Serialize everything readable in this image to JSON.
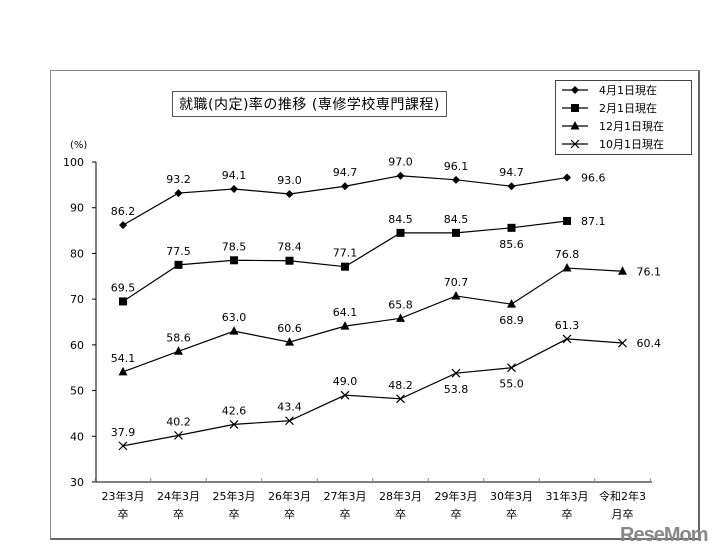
{
  "chart_data": {
    "type": "line",
    "title": "就職(内定)率の推移 (専修学校専門課程)",
    "ylabel": "(%)",
    "xlabel": "",
    "ylim": [
      30,
      100
    ],
    "yticks": [
      30,
      40,
      50,
      60,
      70,
      80,
      90,
      100
    ],
    "grid": false,
    "legend_position": "top-right",
    "categories": [
      [
        "23年3月",
        "卒"
      ],
      [
        "24年3月",
        "卒"
      ],
      [
        "25年3月",
        "卒"
      ],
      [
        "26年3月",
        "卒"
      ],
      [
        "27年3月",
        "卒"
      ],
      [
        "28年3月",
        "卒"
      ],
      [
        "29年3月",
        "卒"
      ],
      [
        "30年3月",
        "卒"
      ],
      [
        "31年3月",
        "卒"
      ],
      [
        "令和2年3",
        "月卒"
      ]
    ],
    "series": [
      {
        "name": "4月1日現在",
        "marker": "diamond",
        "values": [
          86.2,
          93.2,
          94.1,
          93.0,
          94.7,
          97.0,
          96.1,
          94.7,
          96.6,
          null
        ],
        "label_pos": [
          "above",
          "above",
          "above",
          "above",
          "above",
          "above",
          "above",
          "above",
          "right",
          null
        ]
      },
      {
        "name": "2月1日現在",
        "marker": "square",
        "values": [
          69.5,
          77.5,
          78.5,
          78.4,
          77.1,
          84.5,
          84.5,
          85.6,
          87.1,
          null
        ],
        "label_pos": [
          "above",
          "above",
          "above",
          "above",
          "above",
          "above",
          "above",
          "below",
          "right",
          null
        ]
      },
      {
        "name": "12月1日現在",
        "marker": "triangle",
        "values": [
          54.1,
          58.6,
          63.0,
          60.6,
          64.1,
          65.8,
          70.7,
          68.9,
          76.8,
          76.1
        ],
        "label_pos": [
          "above",
          "above",
          "above",
          "above",
          "above",
          "above",
          "above",
          "below",
          "above",
          "right"
        ]
      },
      {
        "name": "10月1日現在",
        "marker": "x",
        "values": [
          37.9,
          40.2,
          42.6,
          43.4,
          49.0,
          48.2,
          53.8,
          55.0,
          61.3,
          60.4
        ],
        "label_pos": [
          "above",
          "above",
          "above",
          "above",
          "above",
          "above",
          "below",
          "below",
          "above",
          "right"
        ]
      }
    ]
  },
  "watermark": "ReseMom"
}
